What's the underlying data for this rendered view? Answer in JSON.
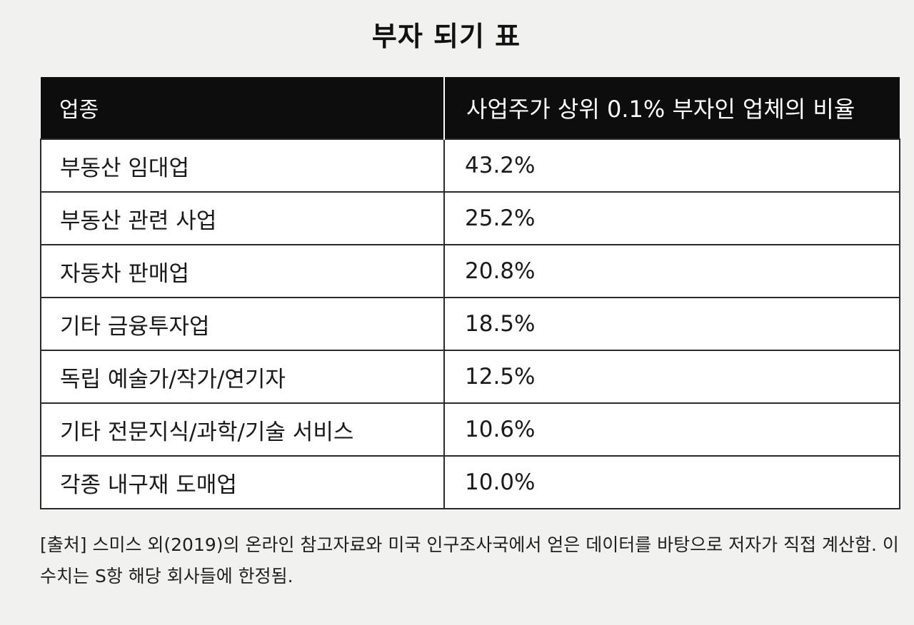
{
  "title": "부자 되기 표",
  "table": {
    "headers": [
      "업종",
      "사업주가 상위 0.1% 부자인 업체의 비율"
    ],
    "rows": [
      {
        "industry": "부동산 임대업",
        "ratio": "43.2%"
      },
      {
        "industry": "부동산 관련 사업",
        "ratio": "25.2%"
      },
      {
        "industry": "자동차 판매업",
        "ratio": "20.8%"
      },
      {
        "industry": "기타 금융투자업",
        "ratio": "18.5%"
      },
      {
        "industry": "독립 예술가/작가/연기자",
        "ratio": "12.5%"
      },
      {
        "industry": "기타 전문지식/과학/기술 서비스",
        "ratio": "10.6%"
      },
      {
        "industry": "각종 내구재 도매업",
        "ratio": "10.0%"
      }
    ]
  },
  "source_note": "[출처] 스미스 외(2019)의 온라인 참고자료와 미국 인구조사국에서 얻은 데이터를 바탕으로 저자가 직접 계산함. 이 수치는 S항 해당 회사들에 한정됨."
}
